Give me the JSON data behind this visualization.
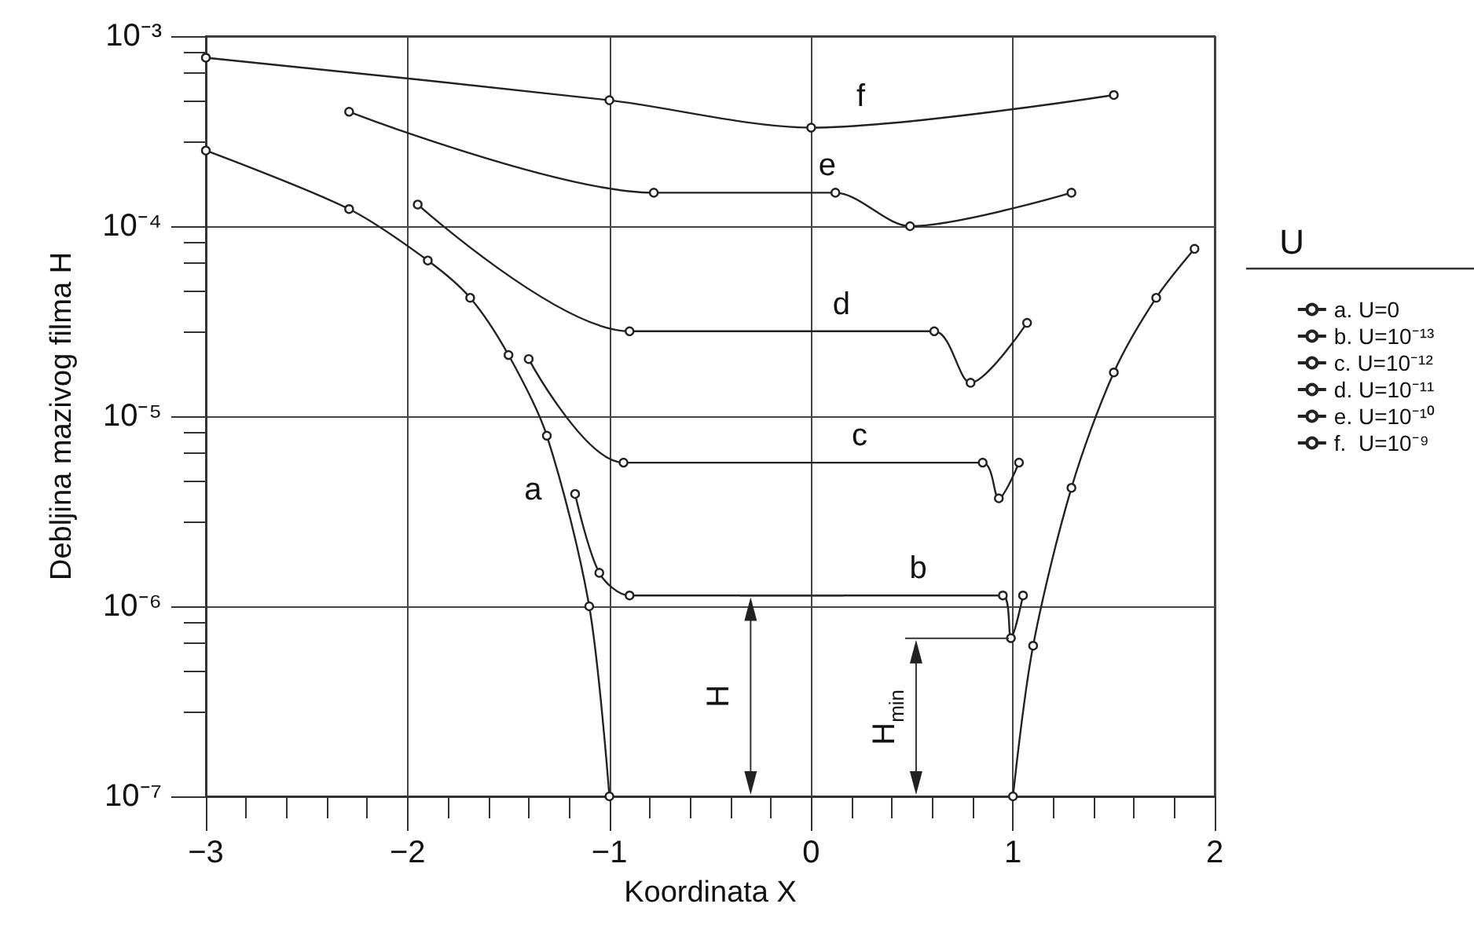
{
  "chart_data": {
    "type": "line",
    "xlabel": "Koordinata X",
    "ylabel": "Debljina mazivog filma H",
    "legend_title": "U",
    "legend": "right",
    "grid": true,
    "marker": "circle",
    "log": "y",
    "xlim": [
      -3,
      2
    ],
    "xticks": [
      {
        "value": -3,
        "label": "−3"
      },
      {
        "value": -2,
        "label": "−2"
      },
      {
        "value": -1,
        "label": "−1"
      },
      0,
      1,
      2
    ],
    "ylim": [
      1e-07,
      0.001
    ],
    "yticks": [
      {
        "value": 1e-07,
        "label": "10⁻⁷"
      },
      {
        "value": 1e-06,
        "label": "10⁻⁶"
      },
      {
        "value": 1e-05,
        "label": "10⁻⁵"
      },
      {
        "value": 0.0001,
        "label": "10⁻⁴"
      },
      {
        "value": 0.001,
        "label": "10⁻³"
      }
    ],
    "series": [
      {
        "name": "a. U=0",
        "color": "#222222",
        "x": [
          -3,
          -2.29,
          -1.9,
          -1.69,
          -1.5,
          -1.31,
          -1.1,
          -1,
          0,
          1,
          1.1,
          1.29,
          1.5,
          1.71,
          1.9
        ],
        "values": [
          0.00025,
          0.000123,
          6.6e-05,
          4.2e-05,
          2.1e-05,
          7.9e-06,
          1e-06,
          1e-07,
          null,
          1e-07,
          6.2e-07,
          4.2e-06,
          1.7e-05,
          4.2e-05,
          7.6e-05
        ]
      },
      {
        "name": "b. U=10⁻¹³",
        "color": "#222222",
        "x": [
          -1.17,
          -1.05,
          -0.9,
          0.95,
          0.99,
          1.05
        ],
        "values": [
          3.9e-06,
          1.5e-06,
          1.14e-06,
          1.14e-06,
          6.8e-07,
          1.14e-06
        ]
      },
      {
        "name": "c. U=10⁻¹²",
        "color": "#222222",
        "x": [
          -1.4,
          -0.93,
          0.85,
          0.93,
          1.03
        ],
        "values": [
          2e-05,
          5.7e-06,
          5.7e-06,
          3.7e-06,
          5.7e-06
        ]
      },
      {
        "name": "d. U=10⁻¹¹",
        "color": "#222222",
        "x": [
          -1.95,
          -0.9,
          0.61,
          0.79,
          1.07
        ],
        "values": [
          0.00013,
          2.8e-05,
          2.8e-05,
          1.5e-05,
          3.1e-05
        ]
      },
      {
        "name": "e. U=10⁻¹⁰",
        "color": "#222222",
        "x": [
          -2.29,
          -0.78,
          0.12,
          0.49,
          1.29
        ],
        "values": [
          0.0004,
          0.00015,
          0.00015,
          0.0001,
          0.00015
        ]
      },
      {
        "name": "f.  U=10⁻⁹",
        "color": "#222222",
        "x": [
          -3,
          -1,
          0,
          1.5
        ],
        "values": [
          0.00077,
          0.00046,
          0.00033,
          0.00049
        ]
      }
    ],
    "annotations": [
      {
        "text": "a",
        "x": -1.25,
        "y": 4.4e-06
      },
      {
        "text": "b",
        "x": 0.53,
        "y": 1.14e-06
      },
      {
        "text": "c",
        "x": 0.24,
        "y": 5.7e-06
      },
      {
        "text": "d",
        "x": 0.15,
        "y": 2.8e-05
      },
      {
        "text": "e",
        "x": 0.08,
        "y": 0.00015
      },
      {
        "text": "f",
        "x": 0.26,
        "y": 0.00035
      },
      "H",
      "H$_{min}$"
    ]
  }
}
